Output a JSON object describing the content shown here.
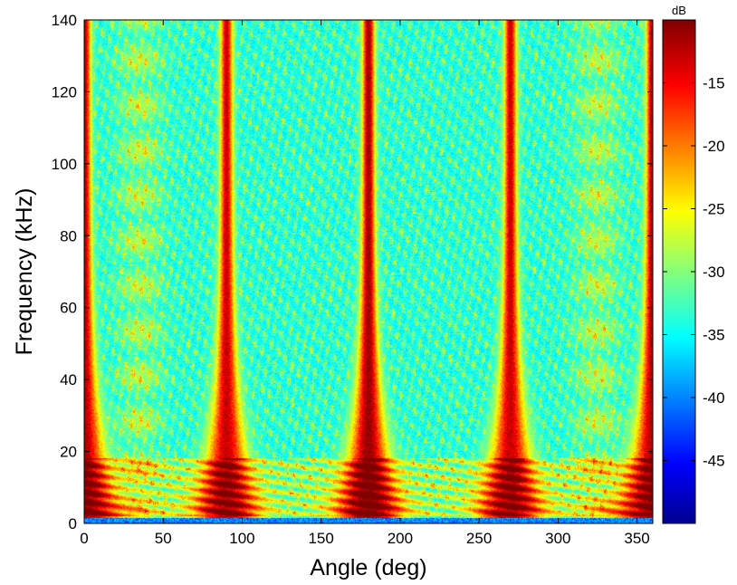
{
  "chart_data": {
    "type": "heatmap",
    "title": "",
    "xlabel": "Angle (deg)",
    "ylabel": "Frequency (kHz)",
    "xlim": [
      0,
      360
    ],
    "ylim": [
      0,
      140
    ],
    "xticks": [
      0,
      50,
      100,
      150,
      200,
      250,
      300,
      350
    ],
    "yticks": [
      0,
      20,
      40,
      60,
      80,
      100,
      120,
      140
    ],
    "grid": false,
    "colormap": "jet",
    "colorbar": {
      "label": "dB",
      "range": [
        -50,
        -10
      ],
      "ticks": [
        -15,
        -20,
        -25,
        -30,
        -35,
        -40,
        -45
      ],
      "placement": "right"
    },
    "intensity_profile": {
      "description_units": "dB",
      "background_db": -35,
      "ridges": [
        {
          "angle": 0,
          "peak_db": -12
        },
        {
          "angle": 90,
          "peak_db": -13
        },
        {
          "angle": 180,
          "peak_db": -11
        },
        {
          "angle": 270,
          "peak_db": -13
        },
        {
          "angle": 360,
          "peak_db": -12
        }
      ],
      "side_lobe_band_angles": [
        35,
        325
      ],
      "low_frequency_band_khz": [
        2,
        18
      ]
    },
    "colors": {
      "jet_stops": [
        "#00008f",
        "#0000ff",
        "#00ffff",
        "#ffff00",
        "#ff0000",
        "#800000"
      ],
      "axis_line": "#000000",
      "background": "#ffffff"
    }
  }
}
